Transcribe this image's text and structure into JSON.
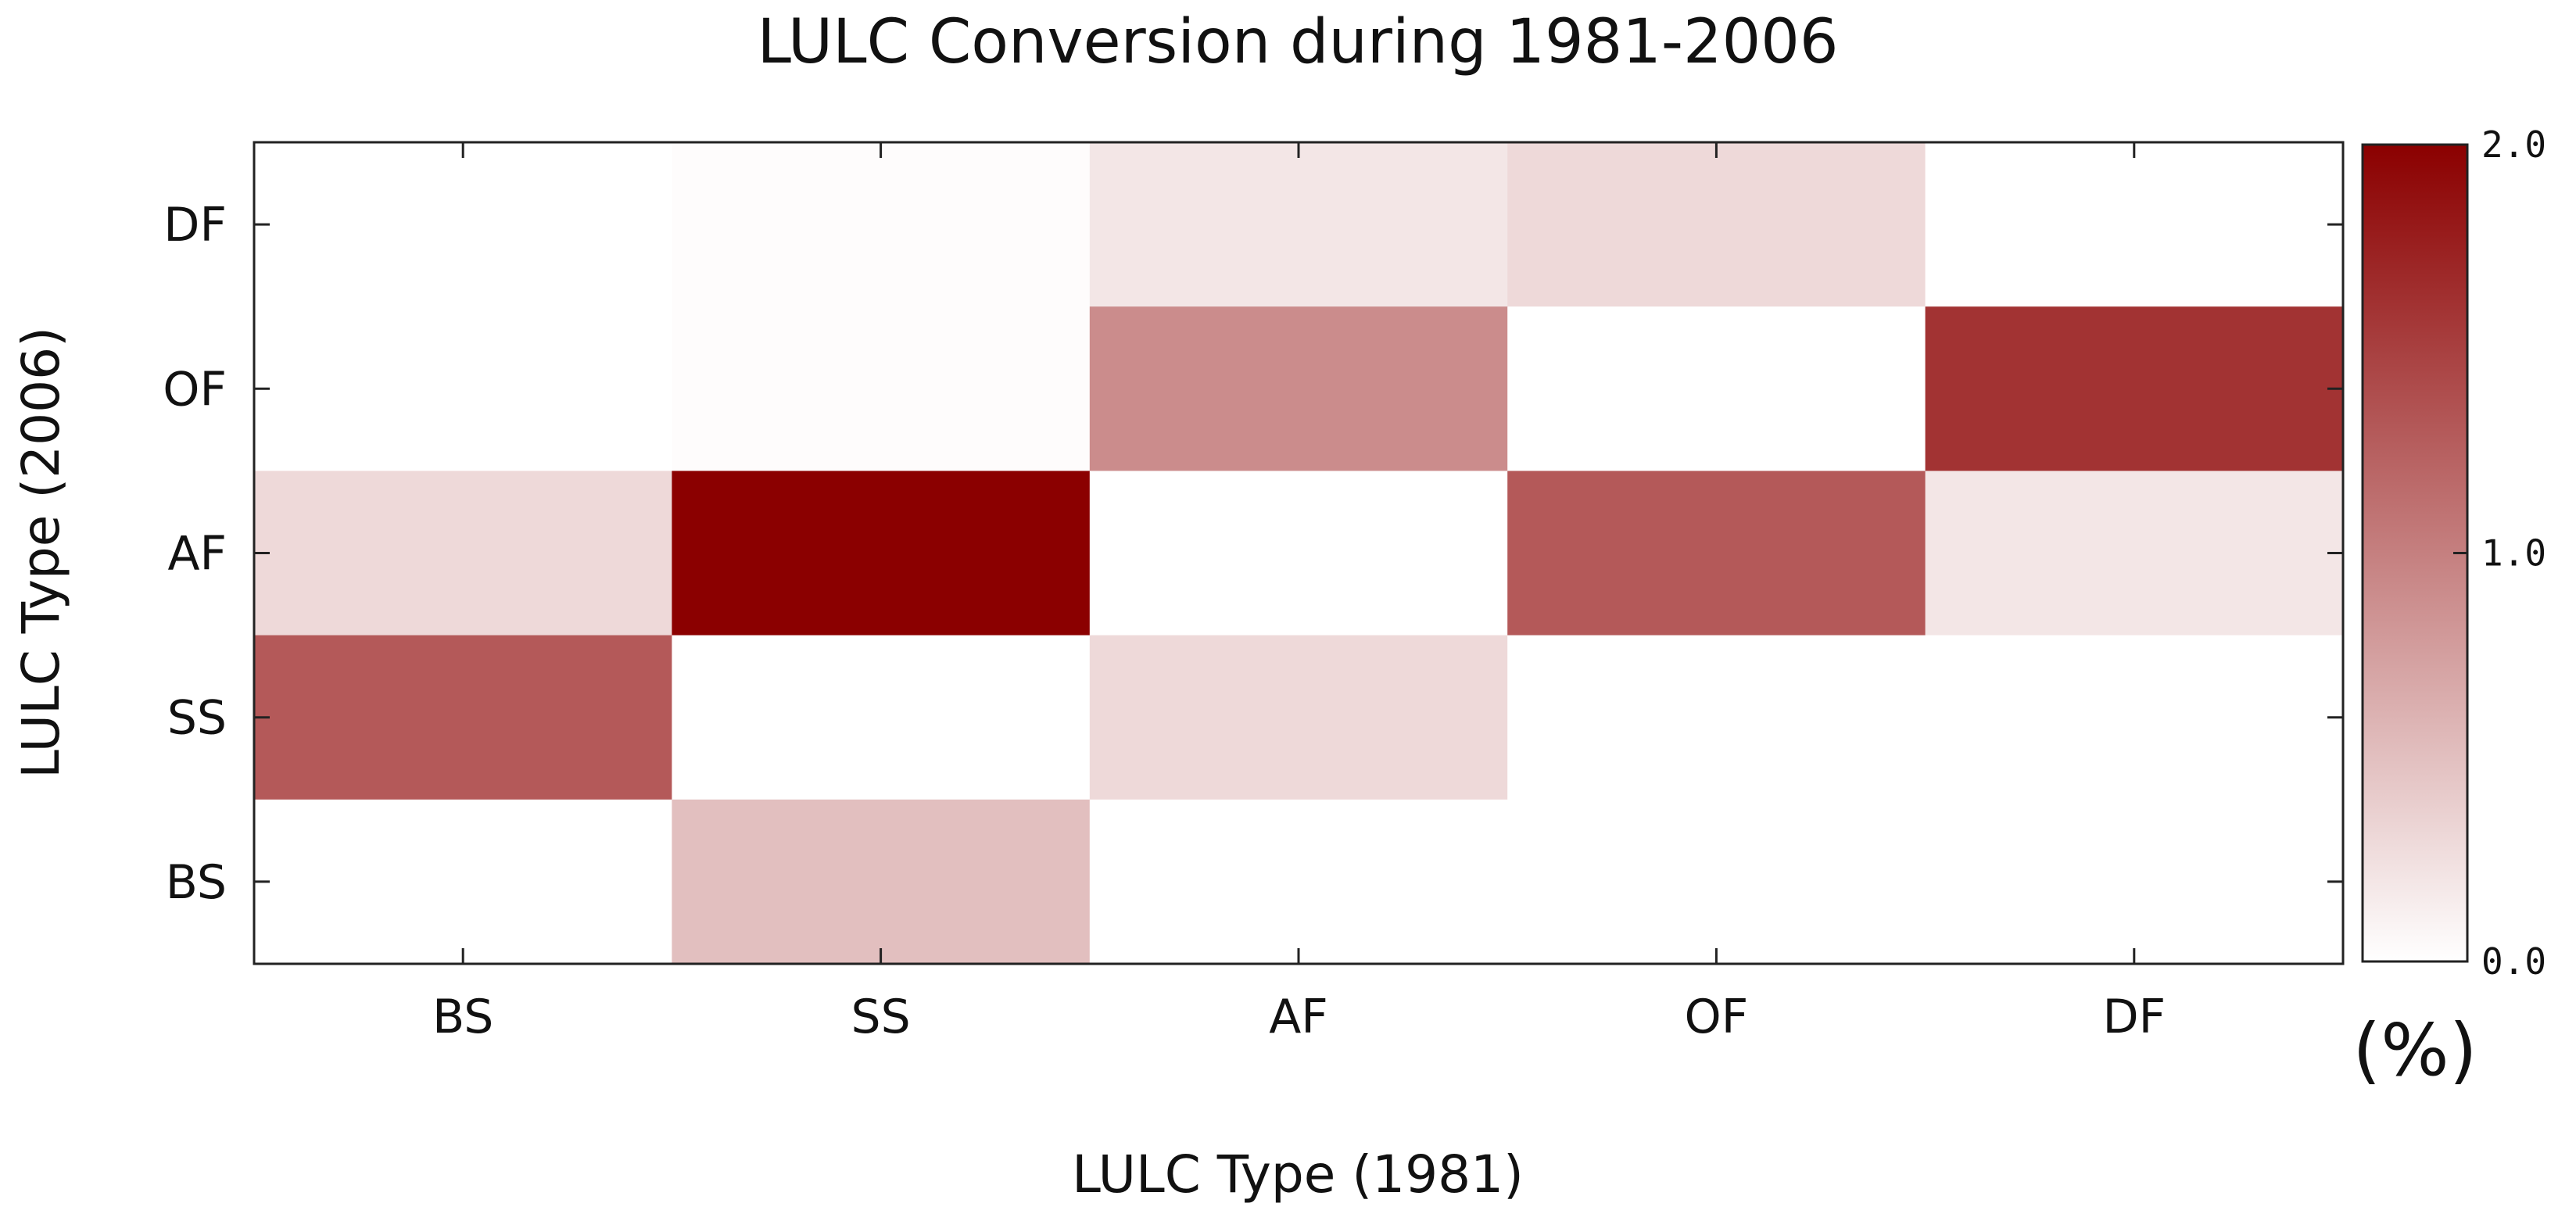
{
  "chart_data": {
    "type": "heatmap",
    "title": "LULC Conversion during 1981-2006",
    "xlabel": "LULC Type (1981)",
    "ylabel": "LULC Type (2006)",
    "x_categories": [
      "BS",
      "SS",
      "AF",
      "OF",
      "DF"
    ],
    "y_categories": [
      "DF",
      "OF",
      "AF",
      "SS",
      "BS"
    ],
    "values": [
      [
        0.0,
        0.02,
        0.2,
        0.3,
        0.0
      ],
      [
        0.0,
        0.02,
        0.9,
        0.0,
        1.6
      ],
      [
        0.3,
        2.0,
        0.0,
        1.3,
        0.2
      ],
      [
        1.3,
        0.0,
        0.3,
        0.0,
        0.0
      ],
      [
        0.0,
        0.5,
        0.0,
        0.0,
        0.0
      ]
    ],
    "colorbar": {
      "min": 0.0,
      "max": 2.0,
      "ticks": [
        "0.0",
        "1.0",
        "2.0"
      ],
      "unit": "(%)",
      "low_color": "#ffffff",
      "high_color": "#8b0000"
    },
    "grid": false
  }
}
